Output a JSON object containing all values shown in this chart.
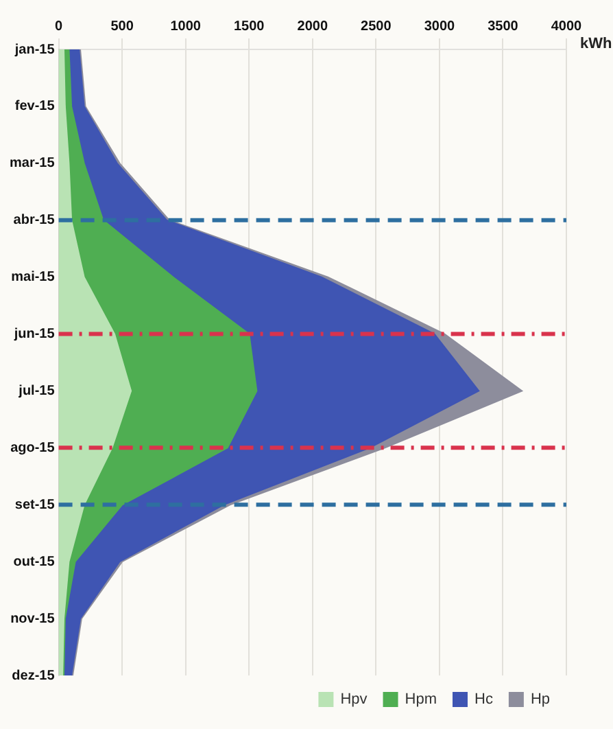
{
  "chart_data": {
    "type": "area",
    "stacked": true,
    "orientation": "horizontal",
    "xlabel": "kWh",
    "categories": [
      "jan-15",
      "fev-15",
      "mar-15",
      "abr-15",
      "mai-15",
      "jun-15",
      "jul-15",
      "ago-15",
      "set-15",
      "out-15",
      "nov-15",
      "dez-15"
    ],
    "series": [
      {
        "name": "Hpv",
        "color": "#b9e3b4",
        "values": [
          40,
          50,
          80,
          100,
          200,
          440,
          570,
          420,
          200,
          80,
          40,
          30
        ]
      },
      {
        "name": "Hpm",
        "color": "#4fae52",
        "values": [
          40,
          50,
          120,
          250,
          700,
          1060,
          990,
          910,
          300,
          50,
          10,
          10
        ]
      },
      {
        "name": "Hc",
        "color": "#3f55b3",
        "values": [
          80,
          100,
          260,
          500,
          1170,
          1460,
          1750,
          1120,
          800,
          350,
          120,
          60
        ]
      },
      {
        "name": "Hp",
        "color": "#8d8d9c",
        "values": [
          10,
          10,
          20,
          20,
          50,
          80,
          340,
          120,
          50,
          20,
          10,
          10
        ]
      }
    ],
    "xlim": [
      0,
      4000
    ],
    "xticks": [
      0,
      500,
      1000,
      1500,
      2000,
      2500,
      3000,
      3500,
      4000
    ],
    "grid": "x",
    "legend": "bottom right",
    "marker": "none",
    "ref_lines": [
      {
        "axis": "y",
        "value": "abr-15",
        "color": "#2e6fa0",
        "line_style": "dashed"
      },
      {
        "axis": "y",
        "value": "jun-15",
        "color": "#d9334d",
        "line_style": "dashdot"
      },
      {
        "axis": "y",
        "value": "ago-15",
        "color": "#d9334d",
        "line_style": "dashdot"
      },
      {
        "axis": "y",
        "value": "set-15",
        "color": "#2e6fa0",
        "line_style": "dashed"
      }
    ]
  }
}
